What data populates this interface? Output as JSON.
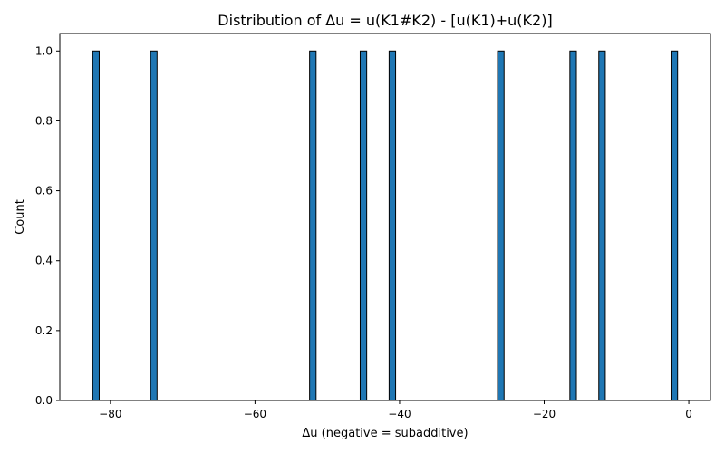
{
  "chart_data": {
    "type": "bar",
    "title": "Distribution of Δu = u(K1#K2) - [u(K1)+u(K2)]",
    "xlabel": "Δu (negative = subadditive)",
    "ylabel": "Count",
    "xlim": [
      -87.0,
      3.0
    ],
    "ylim": [
      0,
      1.05
    ],
    "x_ticks": [
      -80,
      -60,
      -40,
      -20,
      0
    ],
    "x_tick_labels": [
      "−80",
      "−60",
      "−40",
      "−20",
      "0"
    ],
    "y_ticks": [
      0.0,
      0.2,
      0.4,
      0.6,
      0.8,
      1.0
    ],
    "y_tick_labels": [
      "0.0",
      "0.2",
      "0.4",
      "0.6",
      "0.8",
      "1.0"
    ],
    "bin_width": 0.9,
    "bins": [
      {
        "x": -82,
        "count": 1
      },
      {
        "x": -74,
        "count": 1
      },
      {
        "x": -52,
        "count": 1
      },
      {
        "x": -45,
        "count": 1
      },
      {
        "x": -41,
        "count": 1
      },
      {
        "x": -26,
        "count": 1
      },
      {
        "x": -16,
        "count": 1
      },
      {
        "x": -12,
        "count": 1
      },
      {
        "x": -2,
        "count": 1
      }
    ],
    "bar_color": "#1f77b4",
    "edge_color": "#000000",
    "grid": false,
    "legend": "none"
  }
}
